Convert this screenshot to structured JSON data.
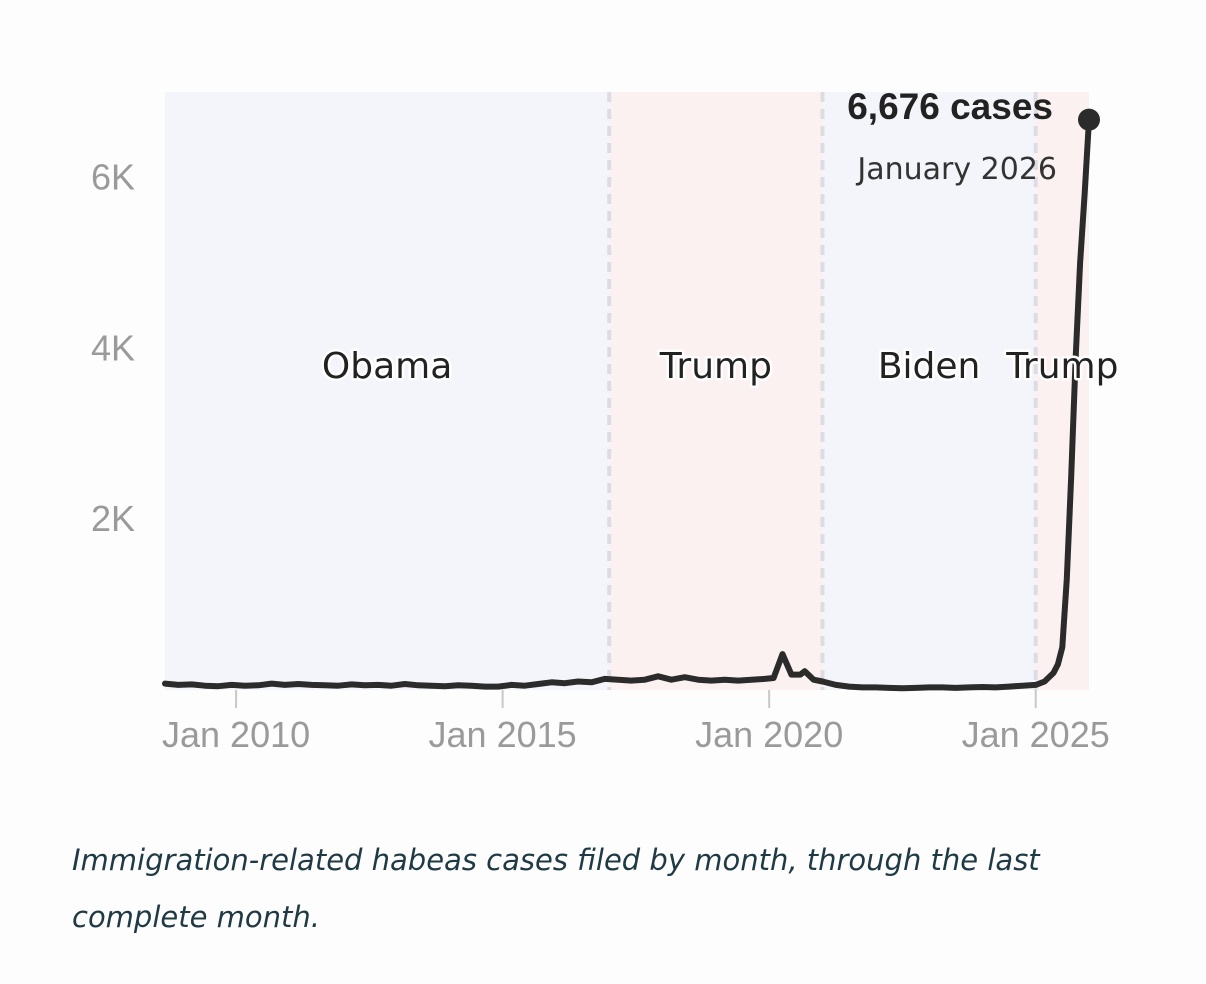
{
  "chart_data": {
    "type": "line",
    "title": "",
    "xlabel": "",
    "ylabel": "",
    "x_range": [
      "2008-09",
      "2026-01"
    ],
    "ylim": [
      0,
      7000
    ],
    "y_ticks": [
      {
        "value": 2000,
        "label": "2K"
      },
      {
        "value": 4000,
        "label": "4K"
      },
      {
        "value": 6000,
        "label": "6K"
      }
    ],
    "x_ticks": [
      {
        "date": "2010-01",
        "label": "Jan 2010"
      },
      {
        "date": "2015-01",
        "label": "Jan 2015"
      },
      {
        "date": "2020-01",
        "label": "Jan 2020"
      },
      {
        "date": "2025-01",
        "label": "Jan 2025"
      }
    ],
    "eras": [
      {
        "label": "Obama",
        "start": "2008-09",
        "end": "2017-01",
        "color": "#f4f5fb"
      },
      {
        "label": "Trump",
        "start": "2017-01",
        "end": "2021-01",
        "color": "#fbf1f0"
      },
      {
        "label": "Biden",
        "start": "2021-01",
        "end": "2025-01",
        "color": "#f4f5fb"
      },
      {
        "label": "Trump",
        "start": "2025-01",
        "end": "2026-01",
        "color": "#fbf1f0"
      }
    ],
    "series": [
      {
        "color": "#2b2b2b",
        "points": [
          [
            "2008-09",
            75
          ],
          [
            "2008-12",
            60
          ],
          [
            "2009-03",
            65
          ],
          [
            "2009-06",
            50
          ],
          [
            "2009-09",
            45
          ],
          [
            "2009-12",
            60
          ],
          [
            "2010-03",
            50
          ],
          [
            "2010-06",
            55
          ],
          [
            "2010-09",
            75
          ],
          [
            "2010-12",
            60
          ],
          [
            "2011-03",
            70
          ],
          [
            "2011-06",
            60
          ],
          [
            "2011-09",
            55
          ],
          [
            "2011-12",
            50
          ],
          [
            "2012-03",
            65
          ],
          [
            "2012-06",
            55
          ],
          [
            "2012-09",
            60
          ],
          [
            "2012-12",
            50
          ],
          [
            "2013-03",
            70
          ],
          [
            "2013-06",
            55
          ],
          [
            "2013-09",
            50
          ],
          [
            "2013-12",
            45
          ],
          [
            "2014-03",
            55
          ],
          [
            "2014-06",
            50
          ],
          [
            "2014-09",
            40
          ],
          [
            "2014-12",
            40
          ],
          [
            "2015-03",
            60
          ],
          [
            "2015-06",
            50
          ],
          [
            "2015-09",
            70
          ],
          [
            "2015-12",
            90
          ],
          [
            "2016-03",
            80
          ],
          [
            "2016-06",
            100
          ],
          [
            "2016-09",
            90
          ],
          [
            "2016-12",
            130
          ],
          [
            "2017-03",
            120
          ],
          [
            "2017-06",
            110
          ],
          [
            "2017-09",
            120
          ],
          [
            "2017-12",
            160
          ],
          [
            "2018-03",
            120
          ],
          [
            "2018-06",
            150
          ],
          [
            "2018-09",
            120
          ],
          [
            "2018-12",
            110
          ],
          [
            "2019-03",
            120
          ],
          [
            "2019-06",
            110
          ],
          [
            "2019-09",
            120
          ],
          [
            "2019-12",
            130
          ],
          [
            "2020-02",
            140
          ],
          [
            "2020-04",
            420
          ],
          [
            "2020-06",
            180
          ],
          [
            "2020-08",
            180
          ],
          [
            "2020-09",
            220
          ],
          [
            "2020-11",
            120
          ],
          [
            "2021-01",
            100
          ],
          [
            "2021-04",
            60
          ],
          [
            "2021-07",
            40
          ],
          [
            "2021-10",
            30
          ],
          [
            "2022-01",
            30
          ],
          [
            "2022-04",
            25
          ],
          [
            "2022-07",
            20
          ],
          [
            "2022-10",
            25
          ],
          [
            "2023-01",
            30
          ],
          [
            "2023-04",
            30
          ],
          [
            "2023-07",
            25
          ],
          [
            "2023-10",
            30
          ],
          [
            "2024-01",
            35
          ],
          [
            "2024-04",
            30
          ],
          [
            "2024-07",
            40
          ],
          [
            "2024-10",
            50
          ],
          [
            "2025-01",
            60
          ],
          [
            "2025-03",
            100
          ],
          [
            "2025-05",
            200
          ],
          [
            "2025-06",
            300
          ],
          [
            "2025-07",
            500
          ],
          [
            "2025-08",
            1300
          ],
          [
            "2025-09",
            2500
          ],
          [
            "2025-10",
            3900
          ],
          [
            "2025-11",
            5000
          ],
          [
            "2025-12",
            5800
          ],
          [
            "2026-01",
            6676
          ]
        ]
      }
    ],
    "annotation": {
      "value_label": "6,676 cases",
      "date_label": "January 2026",
      "date": "2026-01",
      "value": 6676
    },
    "grid": false
  },
  "caption": "Immigration-related habeas cases filed by month, through the last complete month."
}
